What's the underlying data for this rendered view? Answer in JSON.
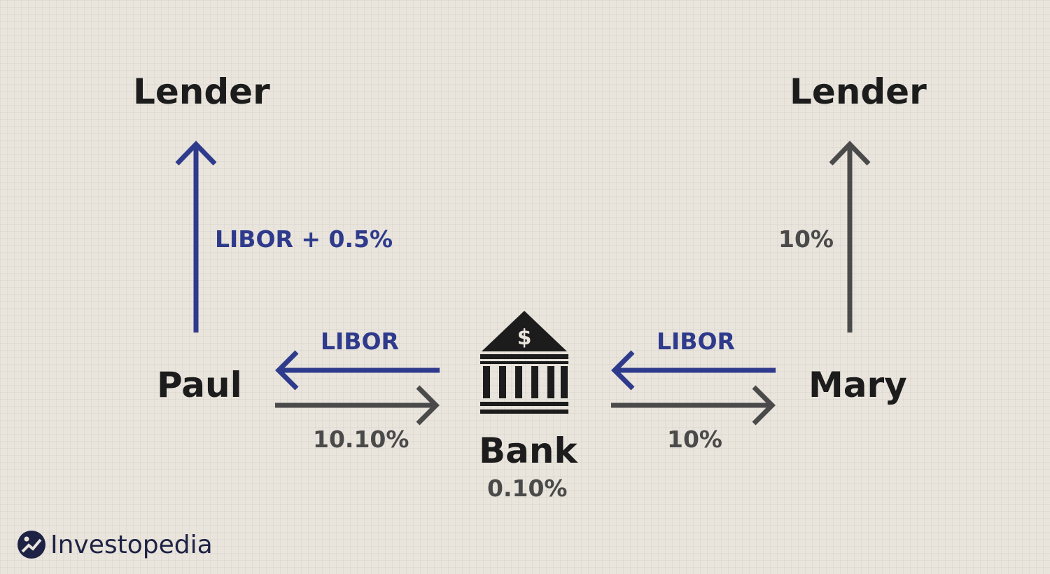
{
  "nodes": {
    "lender_left": "Lender",
    "lender_right": "Lender",
    "paul": "Paul",
    "mary": "Mary",
    "bank": "Bank",
    "bank_spread": "0.10%"
  },
  "flows": {
    "paul_to_lender": "LIBOR + 0.5%",
    "mary_to_lender": "10%",
    "bank_to_paul": "LIBOR",
    "paul_to_bank": "10.10%",
    "mary_to_bank_libor": "LIBOR",
    "bank_to_mary": "10%"
  },
  "icons": {
    "bank": "bank-building-icon",
    "bank_symbol": "$"
  },
  "brand": {
    "name": "Investopedia",
    "logo_icon": "investopedia-logo-icon"
  },
  "colors": {
    "blue": "#2e3a8c",
    "gray": "#4a4a4a",
    "text": "#1c1c1c",
    "background": "#e9e4dc"
  }
}
